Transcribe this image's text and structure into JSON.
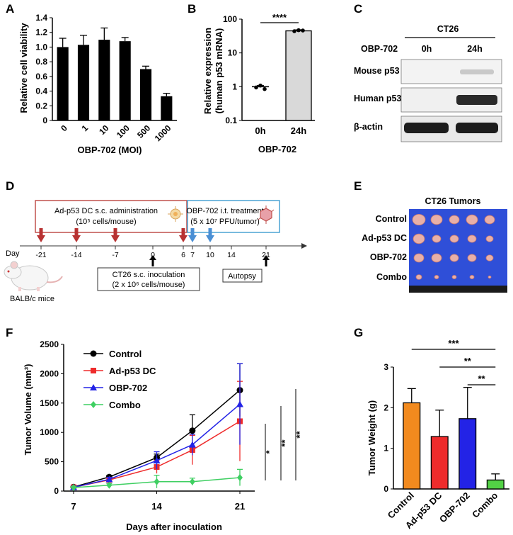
{
  "panel_labels": [
    "A",
    "B",
    "C",
    "D",
    "E",
    "F",
    "G"
  ],
  "chart_data": [
    {
      "id": "A",
      "type": "bar",
      "categories": [
        "0",
        "1",
        "10",
        "100",
        "500",
        "1000"
      ],
      "values": [
        1.0,
        1.03,
        1.1,
        1.08,
        0.7,
        0.33
      ],
      "errors": [
        0.12,
        0.13,
        0.16,
        0.05,
        0.04,
        0.04
      ],
      "xlabel": "OBP-702 (MOI)",
      "ylabel": "Relative cell viability",
      "ylim": [
        0,
        1.4
      ],
      "yticks": [
        "0",
        "0.2",
        "0.4",
        "0.6",
        "0.8",
        "1.0",
        "1.2",
        "1.4"
      ]
    },
    {
      "id": "B",
      "type": "bar",
      "scale": "log",
      "categories": [
        "0h",
        "24h"
      ],
      "values": [
        1.0,
        45
      ],
      "errors": [
        0.08,
        3
      ],
      "points": [
        [
          0.95,
          1.08,
          0.85
        ],
        [
          44,
          47,
          46
        ]
      ],
      "xlabel": "OBP-702",
      "ylabel_line1": "Relative expression",
      "ylabel_line2": "(human p53 mRNA)",
      "ylim": [
        0.1,
        100
      ],
      "yticks": [
        "0.1",
        "1",
        "10",
        "100"
      ],
      "significance": "****"
    },
    {
      "id": "F",
      "type": "line",
      "x": [
        7,
        10,
        14,
        17,
        21
      ],
      "series": [
        {
          "name": "Control",
          "color": "#000000",
          "marker": "circle",
          "values": [
            70,
            240,
            570,
            1030,
            1720
          ],
          "errors": [
            20,
            30,
            60,
            270,
            450
          ]
        },
        {
          "name": "Ad-p53 DC",
          "color": "#ee2b2b",
          "marker": "square",
          "values": [
            65,
            190,
            410,
            700,
            1190
          ],
          "errors": [
            20,
            35,
            110,
            250,
            680
          ]
        },
        {
          "name": "OBP-702",
          "color": "#2323e6",
          "marker": "triangle",
          "values": [
            65,
            200,
            520,
            790,
            1480
          ],
          "errors": [
            20,
            35,
            150,
            180,
            690
          ]
        },
        {
          "name": "Combo",
          "color": "#3fcf62",
          "marker": "diamond",
          "values": [
            60,
            100,
            160,
            160,
            230
          ],
          "errors": [
            20,
            25,
            110,
            60,
            140
          ]
        }
      ],
      "xlabel": "Days after inoculation",
      "ylabel": "Tumor Volume (mm³)",
      "xlim": [
        7,
        21
      ],
      "ylim": [
        0,
        2500
      ],
      "xticks": [
        "7",
        "14",
        "21"
      ],
      "yticks": [
        "0",
        "500",
        "1000",
        "1500",
        "2000",
        "2500"
      ],
      "significance": [
        "*",
        "**",
        "**"
      ]
    },
    {
      "id": "G",
      "type": "bar",
      "categories": [
        "Control",
        "Ad-p53 DC",
        "OBP-702",
        "Combo"
      ],
      "values": [
        2.12,
        1.29,
        1.73,
        0.22
      ],
      "errors": [
        0.35,
        0.65,
        0.77,
        0.15
      ],
      "colors": [
        "#f28a1e",
        "#ee2b2b",
        "#2323e6",
        "#52d145"
      ],
      "ylabel": "Tumor Weight (g)",
      "ylim": [
        0,
        3
      ],
      "yticks": [
        "0",
        "1",
        "2",
        "3"
      ],
      "significance": [
        "***",
        "**",
        "**"
      ]
    }
  ],
  "western": {
    "title": "CT26",
    "row_header": "OBP-702",
    "lanes": [
      "0h",
      "24h"
    ],
    "rows": [
      "Mouse p53",
      "Human p53",
      "β-actin"
    ]
  },
  "timeline": {
    "day_label": "Day",
    "days": [
      "-21",
      "-14",
      "-7",
      "0",
      "6",
      "7",
      "10",
      "14",
      "21"
    ],
    "adp53_text1": "Ad-p53 DC s.c. administration",
    "adp53_text2": "(10⁵ cells/mouse)",
    "obp_text1": "OBP-702 i.t. treatment",
    "obp_text2": "(5 x 10⁷ PFU/tumor)",
    "inoc_text1": "CT26 s.c. inoculation",
    "inoc_text2": "(2 x 10⁶ cells/mouse)",
    "autopsy": "Autopsy",
    "mice": "BALB/c mice"
  },
  "tumors": {
    "title": "CT26 Tumors",
    "groups": [
      "Control",
      "Ad-p53 DC",
      "OBP-702",
      "Combo"
    ]
  }
}
